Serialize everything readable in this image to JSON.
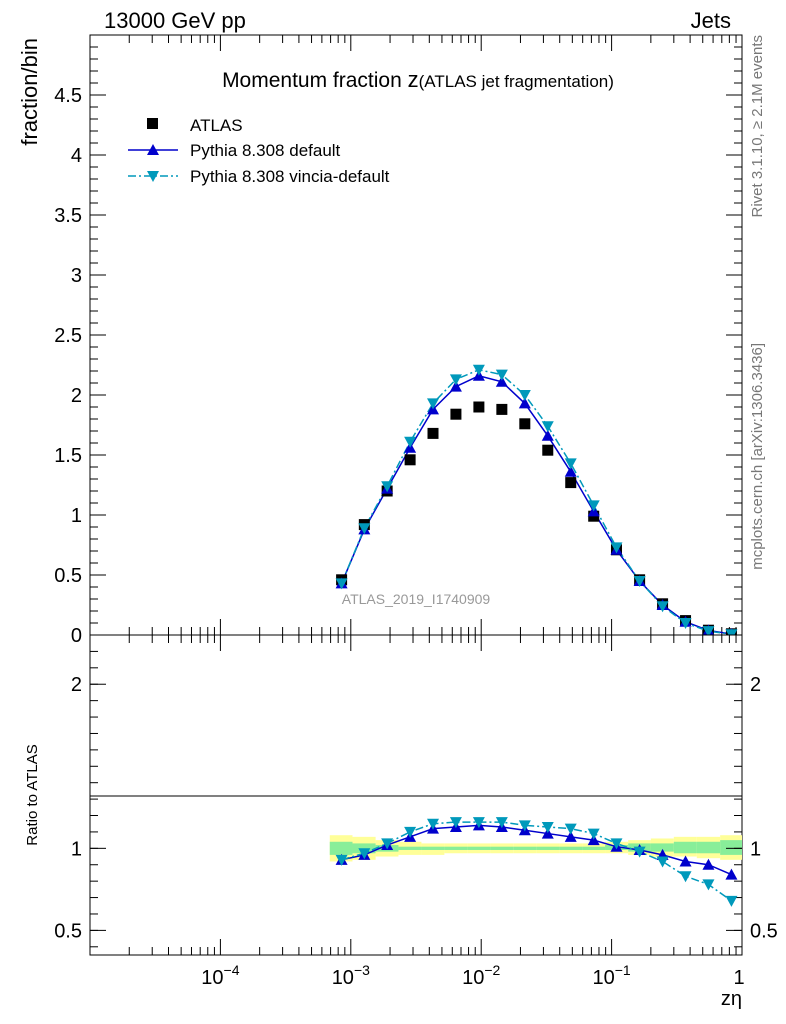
{
  "header": {
    "energy_label": "13000 GeV pp",
    "category_label": "Jets"
  },
  "side_text": {
    "rivet": "Rivet 3.1.10, ≥ 2.1M events",
    "source": "mcplots.cern.ch [arXiv:1306.3436]"
  },
  "watermark": "ATLAS_2019_I1740909",
  "colors": {
    "data": "#000000",
    "pythia_default": "#0000cc",
    "pythia_vincia": "#0099bb",
    "band_inner": "#88ee99",
    "band_outer": "#ffff99"
  },
  "chart_data": [
    {
      "type": "scatter",
      "title_main": "Momentum fraction ",
      "title_z": "z",
      "title_sub": "(ATLAS jet fragmentation)",
      "ylabel": "fraction/bin",
      "x_scale": "log",
      "xlim": [
        1e-05,
        1
      ],
      "ylim": [
        0,
        5
      ],
      "y_ticks": [
        0,
        0.5,
        1,
        1.5,
        2,
        2.5,
        3,
        3.5,
        4,
        4.5
      ],
      "y_tick_labels": [
        "0",
        "0.5",
        "1",
        "1.5",
        "2",
        "2.5",
        "3",
        "3.5",
        "4",
        "4.5"
      ],
      "legend_position": "top-left",
      "x": [
        0.00085,
        0.00127,
        0.0019,
        0.00285,
        0.00427,
        0.0064,
        0.0096,
        0.0144,
        0.0216,
        0.0324,
        0.0486,
        0.0729,
        0.109,
        0.164,
        0.246,
        0.369,
        0.553,
        0.83
      ],
      "series": [
        {
          "name": "ATLAS",
          "marker": "square",
          "values": [
            0.46,
            0.92,
            1.2,
            1.46,
            1.68,
            1.84,
            1.9,
            1.88,
            1.76,
            1.54,
            1.27,
            0.99,
            0.71,
            0.46,
            0.26,
            0.12,
            0.04,
            0.01
          ]
        },
        {
          "name": "Pythia 8.308 default",
          "marker": "triangle-up",
          "line": "solid",
          "values": [
            0.43,
            0.88,
            1.22,
            1.56,
            1.88,
            2.07,
            2.16,
            2.11,
            1.93,
            1.66,
            1.36,
            1.03,
            0.71,
            0.45,
            0.25,
            0.11,
            0.038,
            0.008
          ]
        },
        {
          "name": "Pythia 8.308 vincia-default",
          "marker": "triangle-down",
          "line": "dashdot",
          "values": [
            0.43,
            0.89,
            1.24,
            1.61,
            1.93,
            2.13,
            2.21,
            2.17,
            2.0,
            1.74,
            1.43,
            1.08,
            0.73,
            0.45,
            0.24,
            0.1,
            0.032,
            0.006
          ]
        }
      ]
    },
    {
      "type": "line",
      "ylabel": "Ratio to ATLAS",
      "xlabel": "zη",
      "x_scale": "log",
      "xlim": [
        1e-05,
        1
      ],
      "ylim": [
        0.35,
        2.3
      ],
      "y_ticks": [
        0.5,
        1,
        2
      ],
      "y_tick_labels": [
        "0.5",
        "1",
        "2"
      ],
      "x_ticks": [
        0.0001,
        0.001,
        0.01,
        0.1,
        1
      ],
      "x_tick_labels": [
        [
          "10",
          "−4"
        ],
        [
          "10",
          "−3"
        ],
        [
          "10",
          "−2"
        ],
        [
          "10",
          "−1"
        ],
        [
          "1",
          ""
        ]
      ],
      "x_edges": [
        0.00069,
        0.00103,
        0.00155,
        0.00232,
        0.00348,
        0.00522,
        0.00783,
        0.0117,
        0.0176,
        0.0264,
        0.0396,
        0.0594,
        0.0891,
        0.134,
        0.2,
        0.3,
        0.45,
        0.68,
        1.0
      ],
      "uncertainty_bands": [
        {
          "name": "outer",
          "lo": [
            0.92,
            0.93,
            0.95,
            0.96,
            0.96,
            0.97,
            0.97,
            0.97,
            0.97,
            0.97,
            0.97,
            0.97,
            0.97,
            0.96,
            0.95,
            0.95,
            0.94,
            0.93
          ],
          "hi": [
            1.08,
            1.07,
            1.05,
            1.04,
            1.03,
            1.03,
            1.03,
            1.03,
            1.03,
            1.03,
            1.03,
            1.03,
            1.04,
            1.05,
            1.06,
            1.07,
            1.07,
            1.08
          ]
        },
        {
          "name": "inner",
          "lo": [
            0.96,
            0.97,
            0.98,
            0.99,
            0.99,
            0.99,
            0.99,
            0.99,
            0.99,
            0.99,
            0.99,
            0.99,
            0.99,
            0.98,
            0.98,
            0.97,
            0.97,
            0.96
          ],
          "hi": [
            1.04,
            1.03,
            1.02,
            1.01,
            1.01,
            1.01,
            1.01,
            1.01,
            1.01,
            1.01,
            1.01,
            1.01,
            1.02,
            1.03,
            1.03,
            1.04,
            1.04,
            1.05
          ]
        }
      ],
      "reference_line": 1,
      "series": [
        {
          "name": "Pythia 8.308 default",
          "values": [
            0.93,
            0.96,
            1.02,
            1.07,
            1.12,
            1.13,
            1.14,
            1.13,
            1.11,
            1.09,
            1.07,
            1.05,
            1.01,
            0.99,
            0.96,
            0.92,
            0.9,
            0.84
          ]
        },
        {
          "name": "Pythia 8.308 vincia-default",
          "values": [
            0.93,
            0.97,
            1.03,
            1.1,
            1.15,
            1.16,
            1.16,
            1.16,
            1.14,
            1.13,
            1.12,
            1.09,
            1.03,
            0.98,
            0.92,
            0.83,
            0.78,
            0.68
          ]
        }
      ]
    }
  ]
}
